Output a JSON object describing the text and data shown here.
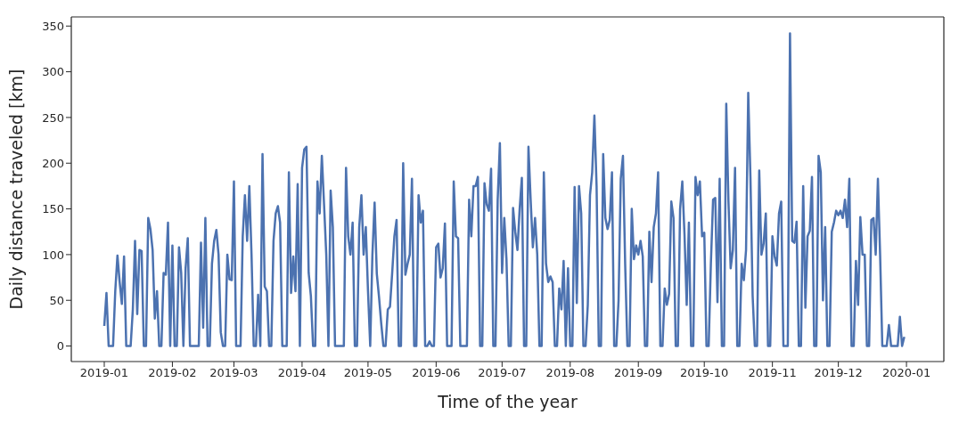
{
  "chart_data": {
    "type": "line",
    "xlabel": "Time of the year",
    "ylabel": "Daily distance traveled [km]",
    "color": "#4c72b0",
    "marker": "none",
    "line_style": "solid",
    "xlim": [
      "2018-12-17",
      "2020-01-18"
    ],
    "ylim": [
      -17,
      360
    ],
    "xticks": [
      "2019-01",
      "2019-02",
      "2019-03",
      "2019-04",
      "2019-05",
      "2019-06",
      "2019-07",
      "2019-08",
      "2019-09",
      "2019-10",
      "2019-11",
      "2019-12",
      "2020-01"
    ],
    "yticks": [
      0,
      50,
      100,
      150,
      200,
      250,
      300,
      350
    ],
    "x": [
      "2019-01-01",
      "2019-01-02",
      "2019-01-03",
      "2019-01-04",
      "2019-01-05",
      "2019-01-06",
      "2019-01-07",
      "2019-01-08",
      "2019-01-09",
      "2019-01-10",
      "2019-01-11",
      "2019-01-12",
      "2019-01-13",
      "2019-01-14",
      "2019-01-15",
      "2019-01-16",
      "2019-01-17",
      "2019-01-18",
      "2019-01-19",
      "2019-01-20",
      "2019-01-21",
      "2019-01-22",
      "2019-01-23",
      "2019-01-24",
      "2019-01-25",
      "2019-01-26",
      "2019-01-27",
      "2019-01-28",
      "2019-01-29",
      "2019-01-30",
      "2019-01-31",
      "2019-02-01",
      "2019-02-02",
      "2019-02-03",
      "2019-02-04",
      "2019-02-05",
      "2019-02-06",
      "2019-02-07",
      "2019-02-08",
      "2019-02-09",
      "2019-02-10",
      "2019-02-11",
      "2019-02-12",
      "2019-02-13",
      "2019-02-14",
      "2019-02-15",
      "2019-02-16",
      "2019-02-17",
      "2019-02-18",
      "2019-02-19",
      "2019-02-20",
      "2019-02-21",
      "2019-02-22",
      "2019-02-23",
      "2019-02-24",
      "2019-02-25",
      "2019-02-26",
      "2019-02-27",
      "2019-02-28",
      "2019-03-01",
      "2019-03-02",
      "2019-03-03",
      "2019-03-04",
      "2019-03-05",
      "2019-03-06",
      "2019-03-07",
      "2019-03-08",
      "2019-03-09",
      "2019-03-10",
      "2019-03-11",
      "2019-03-12",
      "2019-03-13",
      "2019-03-14",
      "2019-03-15",
      "2019-03-16",
      "2019-03-17",
      "2019-03-18",
      "2019-03-19",
      "2019-03-20",
      "2019-03-21",
      "2019-03-22",
      "2019-03-23",
      "2019-03-24",
      "2019-03-25",
      "2019-03-26",
      "2019-03-27",
      "2019-03-28",
      "2019-03-29",
      "2019-03-30",
      "2019-03-31",
      "2019-04-01",
      "2019-04-02",
      "2019-04-03",
      "2019-04-04",
      "2019-04-05",
      "2019-04-06",
      "2019-04-07",
      "2019-04-08",
      "2019-04-09",
      "2019-04-10",
      "2019-04-11",
      "2019-04-12",
      "2019-04-13",
      "2019-04-14",
      "2019-04-15",
      "2019-04-16",
      "2019-04-17",
      "2019-04-18",
      "2019-04-19",
      "2019-04-20",
      "2019-04-21",
      "2019-04-22",
      "2019-04-23",
      "2019-04-24",
      "2019-04-25",
      "2019-04-26",
      "2019-04-27",
      "2019-04-28",
      "2019-04-29",
      "2019-04-30",
      "2019-05-01",
      "2019-05-02",
      "2019-05-03",
      "2019-05-04",
      "2019-05-05",
      "2019-05-06",
      "2019-05-07",
      "2019-05-08",
      "2019-05-09",
      "2019-05-10",
      "2019-05-11",
      "2019-05-12",
      "2019-05-13",
      "2019-05-14",
      "2019-05-15",
      "2019-05-16",
      "2019-05-17",
      "2019-05-18",
      "2019-05-19",
      "2019-05-20",
      "2019-05-21",
      "2019-05-22",
      "2019-05-23",
      "2019-05-24",
      "2019-05-25",
      "2019-05-26",
      "2019-05-27",
      "2019-05-28",
      "2019-05-29",
      "2019-05-30",
      "2019-05-31",
      "2019-06-01",
      "2019-06-02",
      "2019-06-03",
      "2019-06-04",
      "2019-06-05",
      "2019-06-06",
      "2019-06-07",
      "2019-06-08",
      "2019-06-09",
      "2019-06-10",
      "2019-06-11",
      "2019-06-12",
      "2019-06-13",
      "2019-06-14",
      "2019-06-15",
      "2019-06-16",
      "2019-06-17",
      "2019-06-18",
      "2019-06-19",
      "2019-06-20",
      "2019-06-21",
      "2019-06-22",
      "2019-06-23",
      "2019-06-24",
      "2019-06-25",
      "2019-06-26",
      "2019-06-27",
      "2019-06-28",
      "2019-06-29",
      "2019-06-30",
      "2019-07-01",
      "2019-07-02",
      "2019-07-03",
      "2019-07-04",
      "2019-07-05",
      "2019-07-06",
      "2019-07-07",
      "2019-07-08",
      "2019-07-09",
      "2019-07-10",
      "2019-07-11",
      "2019-07-12",
      "2019-07-13",
      "2019-07-14",
      "2019-07-15",
      "2019-07-16",
      "2019-07-17",
      "2019-07-18",
      "2019-07-19",
      "2019-07-20",
      "2019-07-21",
      "2019-07-22",
      "2019-07-23",
      "2019-07-24",
      "2019-07-25",
      "2019-07-26",
      "2019-07-27",
      "2019-07-28",
      "2019-07-29",
      "2019-07-30",
      "2019-07-31",
      "2019-08-01",
      "2019-08-02",
      "2019-08-03",
      "2019-08-04",
      "2019-08-05",
      "2019-08-06",
      "2019-08-07",
      "2019-08-08",
      "2019-08-09",
      "2019-08-10",
      "2019-08-11",
      "2019-08-12",
      "2019-08-13",
      "2019-08-14",
      "2019-08-15",
      "2019-08-16",
      "2019-08-17",
      "2019-08-18",
      "2019-08-19",
      "2019-08-20",
      "2019-08-21",
      "2019-08-22",
      "2019-08-23",
      "2019-08-24",
      "2019-08-25",
      "2019-08-26",
      "2019-08-27",
      "2019-08-28",
      "2019-08-29",
      "2019-08-30",
      "2019-08-31",
      "2019-09-01",
      "2019-09-02",
      "2019-09-03",
      "2019-09-04",
      "2019-09-05",
      "2019-09-06",
      "2019-09-07",
      "2019-09-08",
      "2019-09-09",
      "2019-09-10",
      "2019-09-11",
      "2019-09-12",
      "2019-09-13",
      "2019-09-14",
      "2019-09-15",
      "2019-09-16",
      "2019-09-17",
      "2019-09-18",
      "2019-09-19",
      "2019-09-20",
      "2019-09-21",
      "2019-09-22",
      "2019-09-23",
      "2019-09-24",
      "2019-09-25",
      "2019-09-26",
      "2019-09-27",
      "2019-09-28",
      "2019-09-29",
      "2019-09-30",
      "2019-10-01",
      "2019-10-02",
      "2019-10-03",
      "2019-10-04",
      "2019-10-05",
      "2019-10-06",
      "2019-10-07",
      "2019-10-08",
      "2019-10-09",
      "2019-10-10",
      "2019-10-11",
      "2019-10-12",
      "2019-10-13",
      "2019-10-14",
      "2019-10-15",
      "2019-10-16",
      "2019-10-17",
      "2019-10-18",
      "2019-10-19",
      "2019-10-20",
      "2019-10-21",
      "2019-10-22",
      "2019-10-23",
      "2019-10-24",
      "2019-10-25",
      "2019-10-26",
      "2019-10-27",
      "2019-10-28",
      "2019-10-29",
      "2019-10-30",
      "2019-10-31",
      "2019-11-01",
      "2019-11-02",
      "2019-11-03",
      "2019-11-04",
      "2019-11-05",
      "2019-11-06",
      "2019-11-07",
      "2019-11-08",
      "2019-11-09",
      "2019-11-10",
      "2019-11-11",
      "2019-11-12",
      "2019-11-13",
      "2019-11-14",
      "2019-11-15",
      "2019-11-16",
      "2019-11-17",
      "2019-11-18",
      "2019-11-19",
      "2019-11-20",
      "2019-11-21",
      "2019-11-22",
      "2019-11-23",
      "2019-11-24",
      "2019-11-25",
      "2019-11-26",
      "2019-11-27",
      "2019-11-28",
      "2019-11-29",
      "2019-11-30",
      "2019-12-01",
      "2019-12-02",
      "2019-12-03",
      "2019-12-04",
      "2019-12-05",
      "2019-12-06",
      "2019-12-07",
      "2019-12-08",
      "2019-12-09",
      "2019-12-10",
      "2019-12-11",
      "2019-12-12",
      "2019-12-13",
      "2019-12-14",
      "2019-12-15",
      "2019-12-16",
      "2019-12-17",
      "2019-12-18",
      "2019-12-19",
      "2019-12-20",
      "2019-12-21",
      "2019-12-22",
      "2019-12-23",
      "2019-12-24",
      "2019-12-25",
      "2019-12-26",
      "2019-12-27",
      "2019-12-28",
      "2019-12-29",
      "2019-12-30",
      "2019-12-31"
    ],
    "values": [
      22,
      58,
      0,
      0,
      0,
      60,
      99,
      70,
      46,
      98,
      0,
      0,
      0,
      40,
      115,
      35,
      105,
      104,
      0,
      0,
      140,
      128,
      105,
      30,
      60,
      0,
      0,
      80,
      78,
      135,
      0,
      110,
      0,
      0,
      108,
      80,
      0,
      85,
      118,
      0,
      0,
      0,
      0,
      0,
      113,
      20,
      140,
      0,
      0,
      90,
      115,
      127,
      100,
      15,
      0,
      0,
      100,
      73,
      72,
      180,
      0,
      0,
      0,
      120,
      165,
      115,
      175,
      100,
      0,
      0,
      56,
      0,
      210,
      65,
      60,
      0,
      0,
      115,
      145,
      153,
      135,
      0,
      0,
      0,
      190,
      58,
      98,
      60,
      177,
      0,
      195,
      215,
      218,
      80,
      55,
      0,
      0,
      180,
      145,
      208,
      155,
      100,
      0,
      170,
      130,
      0,
      0,
      0,
      0,
      0,
      195,
      120,
      100,
      135,
      0,
      0,
      130,
      165,
      100,
      130,
      60,
      0,
      100,
      157,
      79,
      54,
      25,
      0,
      0,
      40,
      43,
      80,
      120,
      138,
      0,
      0,
      200,
      78,
      90,
      100,
      183,
      0,
      0,
      165,
      135,
      148,
      0,
      0,
      5,
      0,
      0,
      108,
      112,
      75,
      85,
      134,
      0,
      0,
      0,
      180,
      120,
      118,
      0,
      0,
      0,
      0,
      160,
      120,
      175,
      175,
      185,
      0,
      0,
      178,
      155,
      148,
      194,
      0,
      0,
      160,
      222,
      80,
      140,
      95,
      0,
      0,
      151,
      125,
      105,
      150,
      184,
      0,
      0,
      218,
      160,
      108,
      140,
      100,
      0,
      0,
      190,
      90,
      70,
      76,
      70,
      0,
      0,
      63,
      40,
      93,
      0,
      85,
      0,
      0,
      174,
      47,
      175,
      145,
      0,
      0,
      45,
      165,
      190,
      252,
      175,
      0,
      0,
      210,
      140,
      128,
      138,
      190,
      0,
      0,
      50,
      183,
      208,
      90,
      0,
      0,
      150,
      95,
      110,
      100,
      115,
      98,
      0,
      0,
      125,
      70,
      130,
      145,
      190,
      0,
      0,
      63,
      45,
      57,
      158,
      140,
      0,
      0,
      150,
      180,
      122,
      45,
      135,
      0,
      0,
      185,
      165,
      180,
      120,
      124,
      0,
      0,
      90,
      160,
      162,
      48,
      183,
      0,
      0,
      265,
      158,
      85,
      105,
      195,
      0,
      0,
      90,
      72,
      105,
      277,
      185,
      55,
      0,
      0,
      192,
      100,
      112,
      145,
      0,
      0,
      120,
      98,
      88,
      145,
      158,
      0,
      0,
      0,
      342,
      115,
      113,
      136,
      0,
      0,
      175,
      42,
      120,
      126,
      185,
      0,
      0,
      208,
      190,
      50,
      130,
      0,
      0,
      125,
      135,
      148,
      143,
      148,
      140,
      160,
      130,
      183,
      0,
      0,
      93,
      45,
      141,
      100,
      100,
      0,
      0,
      138,
      140,
      100,
      183,
      100,
      0,
      0,
      0,
      23,
      0,
      0,
      0,
      0,
      32,
      0,
      10
    ]
  }
}
